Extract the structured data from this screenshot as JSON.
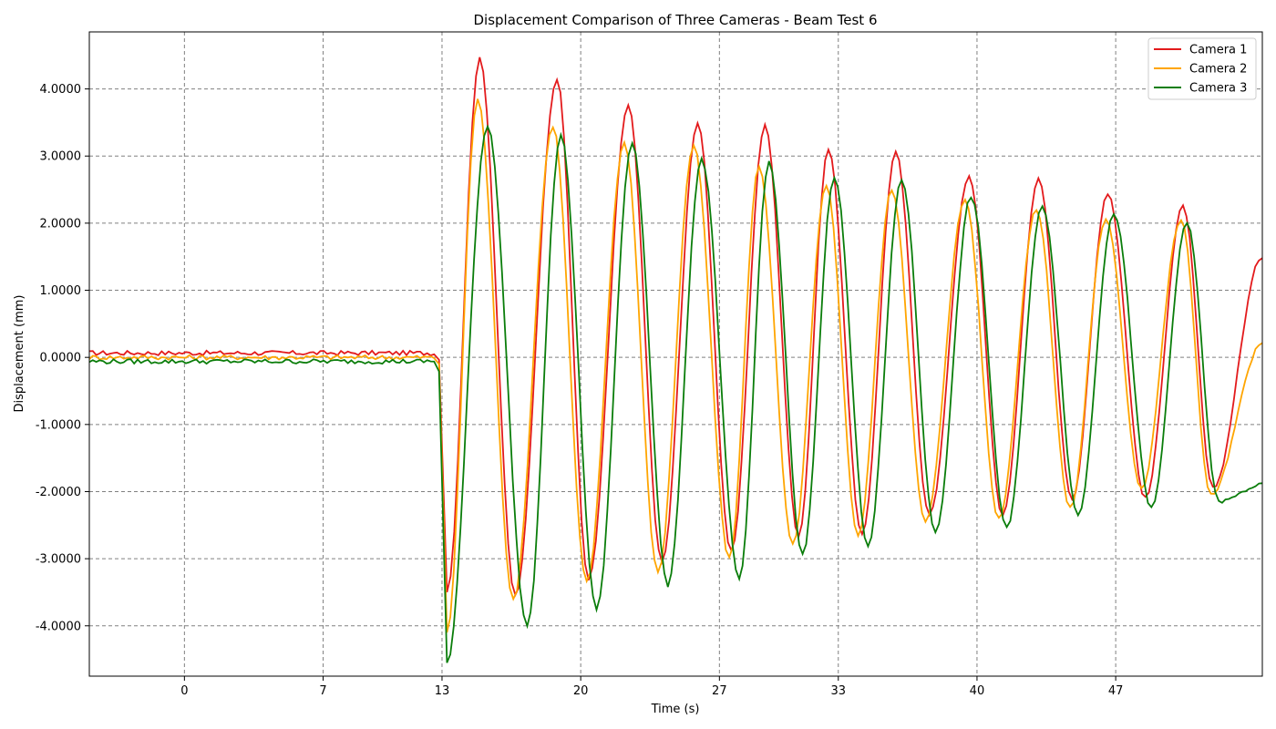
{
  "chart_data": {
    "type": "line",
    "title": "Displacement Comparison of Three Cameras - Beam Test 6",
    "xlabel": "Time (s)",
    "ylabel": "Displacement (mm)",
    "xlim": [
      -4.8,
      54.4
    ],
    "ylim": [
      -4.75,
      4.85
    ],
    "x_ticks": [
      0,
      7,
      13,
      20,
      27,
      33,
      40,
      47
    ],
    "y_ticks": [
      -4,
      -3,
      -2,
      -1,
      0,
      1,
      2,
      3,
      4
    ],
    "y_tick_labels": [
      "-4.0000",
      "-3.0000",
      "-2.0000",
      "-1.0000",
      "0.0000",
      "1.0000",
      "2.0000",
      "3.0000",
      "4.0000"
    ],
    "grid": true,
    "legend_position": "top-right",
    "series": [
      {
        "name": "Camera 1",
        "color": "#e31a1c",
        "x0": -4.8,
        "start_index": 0,
        "dx": 0.174,
        "pre_samples": 0.065,
        "pre_step": -0.1,
        "drop_value": -3.5,
        "peaks": [
          {
            "t": 14.9,
            "v": 4.45
          },
          {
            "t": 16.7,
            "v": -3.55
          },
          {
            "t": 18.8,
            "v": 4.15
          },
          {
            "t": 20.4,
            "v": -3.3
          },
          {
            "t": 22.4,
            "v": 3.75
          },
          {
            "t": 24.1,
            "v": -3.05
          },
          {
            "t": 25.9,
            "v": 3.5
          },
          {
            "t": 27.6,
            "v": -2.9
          },
          {
            "t": 29.3,
            "v": 3.45
          },
          {
            "t": 31.0,
            "v": -2.65
          },
          {
            "t": 32.5,
            "v": 3.1
          },
          {
            "t": 34.2,
            "v": -2.65
          },
          {
            "t": 35.9,
            "v": 3.05
          },
          {
            "t": 37.6,
            "v": -2.35
          },
          {
            "t": 39.6,
            "v": 2.7
          },
          {
            "t": 41.3,
            "v": -2.35
          },
          {
            "t": 43.1,
            "v": 2.65
          },
          {
            "t": 44.8,
            "v": -2.1
          },
          {
            "t": 46.6,
            "v": 2.45
          },
          {
            "t": 48.5,
            "v": -2.1
          },
          {
            "t": 50.4,
            "v": 2.25
          },
          {
            "t": 51.9,
            "v": -1.95
          },
          {
            "t": 54.4,
            "v": 1.5
          }
        ]
      },
      {
        "name": "Camera 2",
        "color": "#ffa500",
        "x0": -4.8,
        "start_index": 0,
        "dx": 0.174,
        "pre_samples": 0.0,
        "pre_step": -0.1,
        "drop_value": -4.1,
        "peaks": [
          {
            "t": 14.8,
            "v": 3.85
          },
          {
            "t": 16.6,
            "v": -3.6
          },
          {
            "t": 18.6,
            "v": 3.45
          },
          {
            "t": 20.3,
            "v": -3.35
          },
          {
            "t": 22.2,
            "v": 3.2
          },
          {
            "t": 23.9,
            "v": -3.2
          },
          {
            "t": 25.7,
            "v": 3.15
          },
          {
            "t": 27.5,
            "v": -3.0
          },
          {
            "t": 29.0,
            "v": 2.85
          },
          {
            "t": 30.7,
            "v": -2.8
          },
          {
            "t": 32.4,
            "v": 2.55
          },
          {
            "t": 34.0,
            "v": -2.65
          },
          {
            "t": 35.7,
            "v": 2.5
          },
          {
            "t": 37.4,
            "v": -2.45
          },
          {
            "t": 39.4,
            "v": 2.35
          },
          {
            "t": 41.1,
            "v": -2.4
          },
          {
            "t": 43.0,
            "v": 2.2
          },
          {
            "t": 44.7,
            "v": -2.25
          },
          {
            "t": 46.5,
            "v": 2.05
          },
          {
            "t": 48.3,
            "v": -1.95
          },
          {
            "t": 50.3,
            "v": 2.05
          },
          {
            "t": 51.8,
            "v": -2.05
          },
          {
            "t": 54.4,
            "v": 0.2
          }
        ]
      },
      {
        "name": "Camera 3",
        "color": "#0a7d0a",
        "x0": -4.8,
        "start_index": 0,
        "dx": 0.174,
        "pre_samples": -0.06,
        "pre_step": -0.15,
        "drop_value": -4.55,
        "peaks": [
          {
            "t": 15.3,
            "v": 3.45
          },
          {
            "t": 17.3,
            "v": -4.0
          },
          {
            "t": 19.0,
            "v": 3.3
          },
          {
            "t": 20.8,
            "v": -3.75
          },
          {
            "t": 22.6,
            "v": 3.2
          },
          {
            "t": 24.4,
            "v": -3.4
          },
          {
            "t": 26.1,
            "v": 2.95
          },
          {
            "t": 28.0,
            "v": -3.3
          },
          {
            "t": 29.5,
            "v": 2.9
          },
          {
            "t": 31.2,
            "v": -2.95
          },
          {
            "t": 32.8,
            "v": 2.7
          },
          {
            "t": 34.5,
            "v": -2.8
          },
          {
            "t": 36.2,
            "v": 2.65
          },
          {
            "t": 37.9,
            "v": -2.6
          },
          {
            "t": 39.7,
            "v": 2.4
          },
          {
            "t": 41.5,
            "v": -2.55
          },
          {
            "t": 43.3,
            "v": 2.25
          },
          {
            "t": 45.1,
            "v": -2.35
          },
          {
            "t": 46.9,
            "v": 2.15
          },
          {
            "t": 48.8,
            "v": -2.25
          },
          {
            "t": 50.6,
            "v": 2.0
          },
          {
            "t": 52.2,
            "v": -2.15
          },
          {
            "t": 54.4,
            "v": -1.9
          }
        ]
      }
    ]
  }
}
